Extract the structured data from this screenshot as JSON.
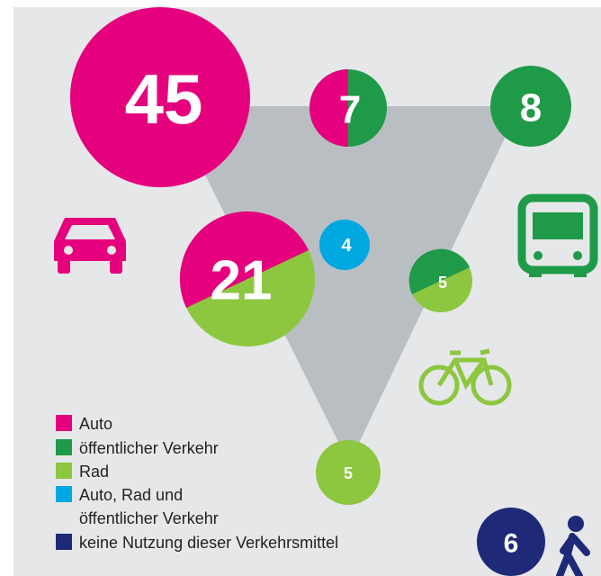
{
  "bubbles": [
    {
      "value": "45"
    },
    {
      "value": "7"
    },
    {
      "value": "8"
    },
    {
      "value": "21"
    },
    {
      "value": "4"
    },
    {
      "value": "5"
    },
    {
      "value": "5"
    },
    {
      "value": "6"
    }
  ],
  "legend": [
    {
      "lines": [
        "Auto"
      ]
    },
    {
      "lines": [
        "öffentlicher Verkehr"
      ]
    },
    {
      "lines": [
        "Rad"
      ]
    },
    {
      "lines": [
        "Auto, Rad und",
        "öffentlicher Verkehr"
      ]
    },
    {
      "lines": [
        "keine Nutzung dieser Verkehrsmittel"
      ]
    }
  ]
}
